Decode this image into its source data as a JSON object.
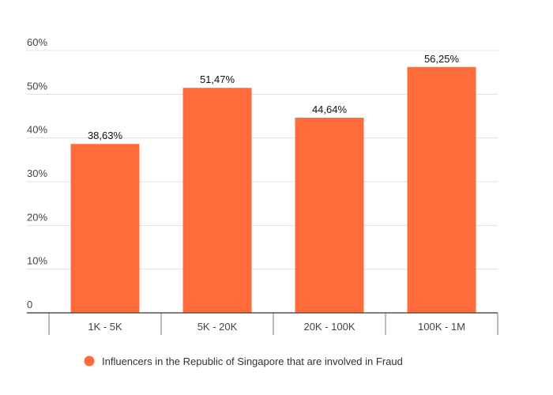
{
  "chart_data": {
    "type": "bar",
    "title": "",
    "xlabel": "",
    "ylabel": "",
    "categories": [
      "1K - 5K",
      "5K - 20K",
      "20K - 100K",
      "100K - 1M"
    ],
    "series": [
      {
        "name": "Influencers in the Republic of Singapore that are involved in Fraud",
        "values": [
          38.63,
          51.47,
          44.64,
          56.25
        ],
        "data_labels": [
          "38,63%",
          "51,47%",
          "44,64%",
          "56,25%"
        ],
        "color": "#FF6B3B"
      }
    ],
    "ylim": [
      0,
      60
    ],
    "yticks": [
      0,
      10,
      20,
      30,
      40,
      50,
      60
    ],
    "ytick_labels": [
      "0",
      "10%",
      "20%",
      "30%",
      "40%",
      "50%",
      "60%"
    ],
    "grid": true,
    "legend_position": "bottom"
  }
}
